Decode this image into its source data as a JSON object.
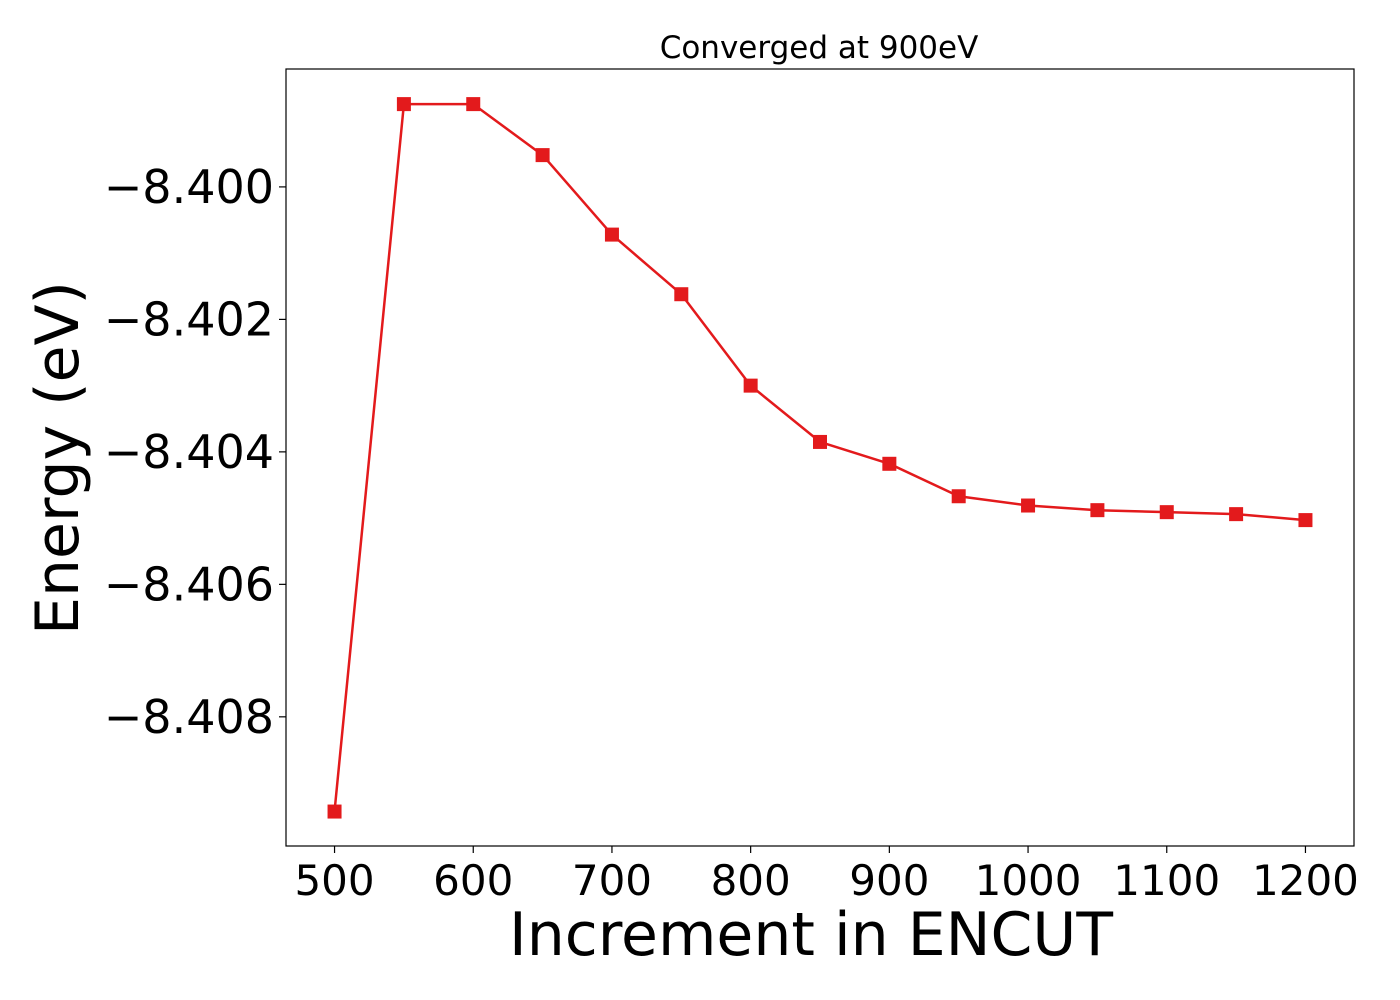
{
  "chart_data": {
    "type": "line",
    "title": "Converged at 900eV",
    "xlabel": "Increment in ENCUT",
    "ylabel": "Energy (eV)",
    "xlim": [
      465,
      1235
    ],
    "ylim": [
      -8.40995,
      -8.39822
    ],
    "x_ticks": [
      500,
      600,
      700,
      800,
      900,
      1000,
      1100,
      1200
    ],
    "x_tick_labels": [
      "500",
      "600",
      "700",
      "800",
      "900",
      "1000",
      "1100",
      "1200"
    ],
    "y_ticks": [
      -8.4,
      -8.402,
      -8.404,
      -8.406,
      -8.408
    ],
    "y_tick_labels": [
      "−8.400",
      "−8.402",
      "−8.404",
      "−8.406",
      "−8.408"
    ],
    "grid": false,
    "legend": "none",
    "series": [
      {
        "color": "#e31a1c",
        "marker": "square",
        "x": [
          500,
          550,
          600,
          650,
          700,
          750,
          800,
          850,
          900,
          950,
          1000,
          1050,
          1100,
          1150,
          1200
        ],
        "y": [
          -8.40943,
          -8.39875,
          -8.39875,
          -8.39952,
          -8.40072,
          -8.40162,
          -8.403,
          -8.40385,
          -8.40418,
          -8.40467,
          -8.40481,
          -8.40488,
          -8.40491,
          -8.40494,
          -8.40503
        ]
      }
    ]
  }
}
